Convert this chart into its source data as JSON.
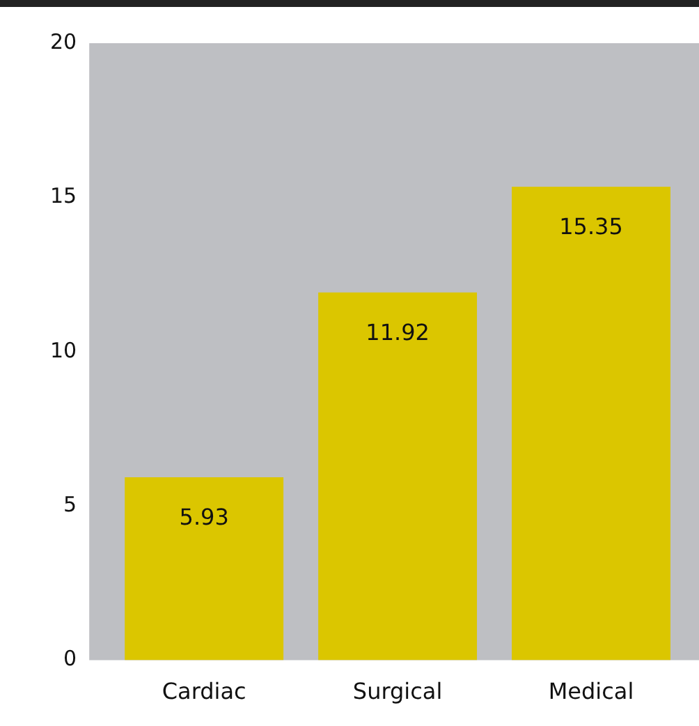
{
  "chart_data": {
    "type": "bar",
    "categories": [
      "Cardiac",
      "Surgical",
      "Medical"
    ],
    "values": [
      5.93,
      11.92,
      15.35
    ],
    "color": "#dbc600",
    "ylim": [
      0,
      20
    ],
    "yticks": [
      0,
      5,
      10,
      15,
      20
    ],
    "data_labels": true,
    "grid": false,
    "legend": false
  }
}
